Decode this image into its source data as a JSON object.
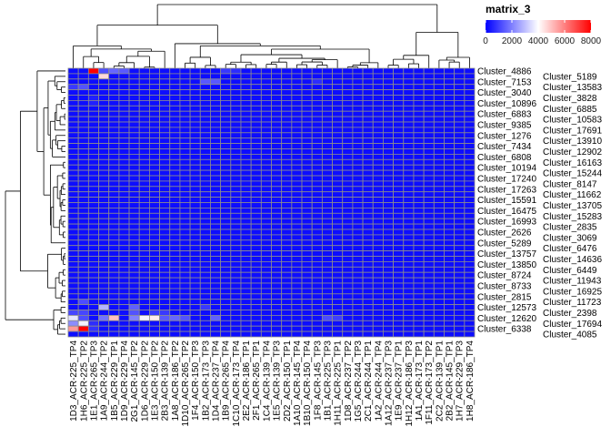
{
  "chart_data": {
    "type": "heatmap",
    "legend": {
      "title": "matrix_3",
      "ticks": [
        0,
        2000,
        4000,
        6000,
        8000
      ],
      "placement": "right"
    },
    "color_scale": {
      "min": 0,
      "mid": 4000,
      "max": 8000,
      "low": "#0000FF",
      "midColor": "#FFFFFF",
      "high": "#FF0000"
    },
    "grid_color": "#8C8C8C",
    "columns": [
      "1D3_ACR-225_TP4",
      "1H6_ACR-225_TP2",
      "1E1_ACR-265_TP3",
      "1A9_ACR-244_TP2",
      "1B5_ACR-229_TP1",
      "1D9_ACR-229_TP4",
      "2G1_ACR-145_TP2",
      "1D6_ACR-229_TP2",
      "1E3_ACR-150_TP2",
      "2B3_ACR-139_TP2",
      "1A8_ACR-186_TP2",
      "1D10_ACR-265_TP2",
      "1F4_ACR-150_TP3",
      "1B2_ACR-173_TP3",
      "1D4_ACR-237_TP4",
      "1B9_ACR-265_TP4",
      "1C10_ACR-173_TP4",
      "2E2_ACR-186_TP1",
      "2F1_ACR-265_TP1",
      "1C4_ACR-139_TP4",
      "1E5_ACR-139_TP3",
      "2D2_ACR-150_TP1",
      "1A10_ACR-145_TP4",
      "1B10_ACR-150_TP4",
      "1F8_ACR-145_TP3",
      "1B1_ACR-225_TP3",
      "1H11_ACR-225_TP1",
      "1D8_ACR-237_TP2",
      "1G5_ACR-244_TP3",
      "2C1_ACR-244_TP1",
      "1A2_ACR-244_TP4",
      "1A12_ACR-237_TP3",
      "1E9_ACR-237_TP1",
      "1H12_ACR-186_TP3",
      "1A1_ACR-173_TP1",
      "1F11_ACR-173_TP2",
      "2C2_ACR-139_TP1",
      "2B2_ACR-145_TP1",
      "1H7_ACR-229_TP3",
      "1H8_ACR-186_TP4"
    ],
    "rows": [
      "Cluster_4886",
      "Cluster_5189",
      "Cluster_7153",
      "Cluster_13583",
      "Cluster_3040",
      "Cluster_3828",
      "Cluster_10896",
      "Cluster_6885",
      "Cluster_6883",
      "Cluster_10583",
      "Cluster_9385",
      "Cluster_17691",
      "Cluster_1276",
      "Cluster_13910",
      "Cluster_7434",
      "Cluster_12902",
      "Cluster_6808",
      "Cluster_16163",
      "Cluster_10194",
      "Cluster_15244",
      "Cluster_17240",
      "Cluster_8147",
      "Cluster_17263",
      "Cluster_11662",
      "Cluster_15591",
      "Cluster_13705",
      "Cluster_16475",
      "Cluster_15283",
      "Cluster_16993",
      "Cluster_2835",
      "Cluster_2626",
      "Cluster_3069",
      "Cluster_5289",
      "Cluster_6476",
      "Cluster_13757",
      "Cluster_14636",
      "Cluster_13850",
      "Cluster_6449",
      "Cluster_8724",
      "Cluster_11943",
      "Cluster_8733",
      "Cluster_16925",
      "Cluster_2815",
      "Cluster_11723",
      "Cluster_12573",
      "Cluster_2398",
      "Cluster_12620",
      "Cluster_17694",
      "Cluster_6338",
      "Cluster_4085"
    ],
    "default_value": 200,
    "cells": [
      [
        0,
        2,
        8000
      ],
      [
        0,
        3,
        1200
      ],
      [
        0,
        4,
        1600
      ],
      [
        0,
        5,
        1400
      ],
      [
        0,
        15,
        900
      ],
      [
        0,
        16,
        700
      ],
      [
        1,
        3,
        4600
      ],
      [
        2,
        13,
        1400
      ],
      [
        2,
        14,
        1400
      ],
      [
        2,
        24,
        700
      ],
      [
        3,
        0,
        900
      ],
      [
        3,
        1,
        1300
      ],
      [
        5,
        2,
        500
      ],
      [
        6,
        2,
        500
      ],
      [
        43,
        1,
        1200
      ],
      [
        44,
        3,
        2800
      ],
      [
        44,
        6,
        1500
      ],
      [
        44,
        13,
        900
      ],
      [
        45,
        0,
        1100
      ],
      [
        45,
        1,
        1100
      ],
      [
        45,
        6,
        1300
      ],
      [
        45,
        8,
        900
      ],
      [
        45,
        9,
        900
      ],
      [
        46,
        0,
        3600
      ],
      [
        46,
        1,
        1200
      ],
      [
        46,
        3,
        1800
      ],
      [
        46,
        4,
        5000
      ],
      [
        46,
        6,
        2000
      ],
      [
        46,
        7,
        3800
      ],
      [
        46,
        8,
        4300
      ],
      [
        46,
        9,
        1400
      ],
      [
        46,
        10,
        1600
      ],
      [
        46,
        11,
        1300
      ],
      [
        46,
        14,
        1500
      ],
      [
        46,
        25,
        1200
      ],
      [
        46,
        26,
        1000
      ],
      [
        47,
        0,
        2200
      ],
      [
        47,
        1,
        3800
      ],
      [
        47,
        2,
        700
      ],
      [
        48,
        0,
        5600
      ],
      [
        48,
        1,
        8000
      ],
      [
        48,
        2,
        800
      ]
    ]
  }
}
